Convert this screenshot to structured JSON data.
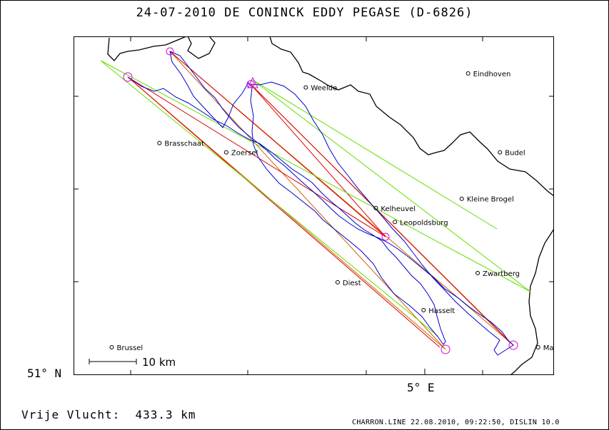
{
  "title": "24-07-2010   DE CONINCK EDDY   PEGASE (D-6826)",
  "axes": {
    "lat_label": "51° N",
    "lon_label": "5° E"
  },
  "scale_bar": {
    "label": "10 km"
  },
  "places": [
    {
      "name": "Eindhoven",
      "lon": 5.47,
      "lat": 51.44
    },
    {
      "name": "Weelde",
      "lon": 4.96,
      "lat": 51.41
    },
    {
      "name": "Brasschaat",
      "lon": 4.5,
      "lat": 51.29
    },
    {
      "name": "Zoersel",
      "lon": 4.71,
      "lat": 51.27
    },
    {
      "name": "Budel",
      "lon": 5.57,
      "lat": 51.27
    },
    {
      "name": "Kelheuvel",
      "lon": 5.18,
      "lat": 51.15
    },
    {
      "name": "Kleine Brogel",
      "lon": 5.45,
      "lat": 51.17
    },
    {
      "name": "Leopoldsburg",
      "lon": 5.24,
      "lat": 51.12
    },
    {
      "name": "Zwartberg",
      "lon": 5.5,
      "lat": 51.01
    },
    {
      "name": "Diest",
      "lon": 5.06,
      "lat": 50.99
    },
    {
      "name": "Hasselt",
      "lon": 5.33,
      "lat": 50.93
    },
    {
      "name": "Maastricht",
      "lon": 5.69,
      "lat": 50.85
    },
    {
      "name": "Brussel",
      "lon": 4.35,
      "lat": 50.85
    }
  ],
  "distance_text": "Vrije Vlucht:  433.3 km",
  "credit": "CHARRON.LINE 22.08.2010, 09:22:50, DISLIN 10.0"
}
